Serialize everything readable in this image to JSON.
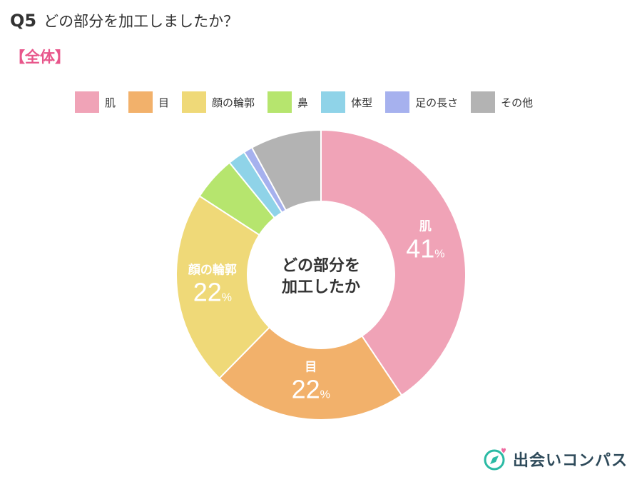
{
  "header": {
    "q": "Q5",
    "title": "どの部分を加工しましたか？",
    "subtitle": "【全体】"
  },
  "center_text": [
    "どの部分を",
    "加工したか"
  ],
  "brand": {
    "name": "出会いコンパス",
    "icon": "compass-heart-icon",
    "accent": "#2bbaa4",
    "heart": "#ef6aa0"
  },
  "chart_data": {
    "type": "pie",
    "donut": true,
    "categories": [
      "肌",
      "目",
      "顔の輪郭",
      "鼻",
      "体型",
      "足の長さ",
      "その他"
    ],
    "values": [
      41,
      22,
      22,
      5,
      2,
      1,
      8
    ],
    "colors": [
      "#f0a3b7",
      "#f2b16b",
      "#efd978",
      "#b6e56e",
      "#8fd3e8",
      "#a6b1ee",
      "#b3b3b3"
    ],
    "data_labels": [
      {
        "category": "肌",
        "value": "41",
        "unit": "%"
      },
      {
        "category": "目",
        "value": "22",
        "unit": "%"
      },
      {
        "category": "顔の輪郭",
        "value": "22",
        "unit": "%"
      }
    ],
    "legend_position": "top"
  }
}
